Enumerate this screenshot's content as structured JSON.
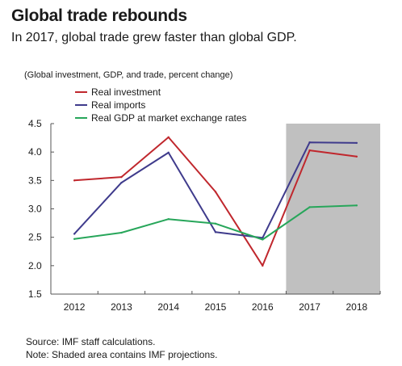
{
  "header": {
    "title": "Global trade rebounds",
    "subtitle": "In 2017, global trade grew faster than global GDP.",
    "units_note": "(Global investment, GDP, and trade, percent change)"
  },
  "footer": {
    "source": "Source: IMF staff calculations.",
    "note": "Note: Shaded area contains IMF projections."
  },
  "chart_data": {
    "type": "line",
    "title": "Global trade rebounds",
    "subtitle": "In 2017, global trade grew faster than global GDP.",
    "ylabel": "(Global investment, GDP, and trade, percent change)",
    "xlabel": "",
    "x": [
      "2012",
      "2013",
      "2014",
      "2015",
      "2016",
      "2017",
      "2018"
    ],
    "ylim": [
      1.5,
      4.5
    ],
    "yticks": [
      "1.5",
      "2.0",
      "2.5",
      "3.0",
      "3.5",
      "4.0",
      "4.5"
    ],
    "grid": false,
    "legend_position": "top-left",
    "shaded_region": {
      "from": "2016.5",
      "to": "2018.5",
      "color": "#c0c0c0"
    },
    "series": [
      {
        "name": "Real investment",
        "color": "#c0272d",
        "values": [
          3.5,
          3.56,
          4.26,
          3.3,
          2.0,
          4.03,
          3.92
        ]
      },
      {
        "name": "Real imports",
        "color": "#3f3b8c",
        "values": [
          2.56,
          3.46,
          3.99,
          2.59,
          2.49,
          4.17,
          4.16
        ]
      },
      {
        "name": "Real GDP at market exchange rates",
        "color": "#27a65a",
        "values": [
          2.47,
          2.58,
          2.82,
          2.74,
          2.46,
          3.03,
          3.06
        ]
      }
    ]
  }
}
